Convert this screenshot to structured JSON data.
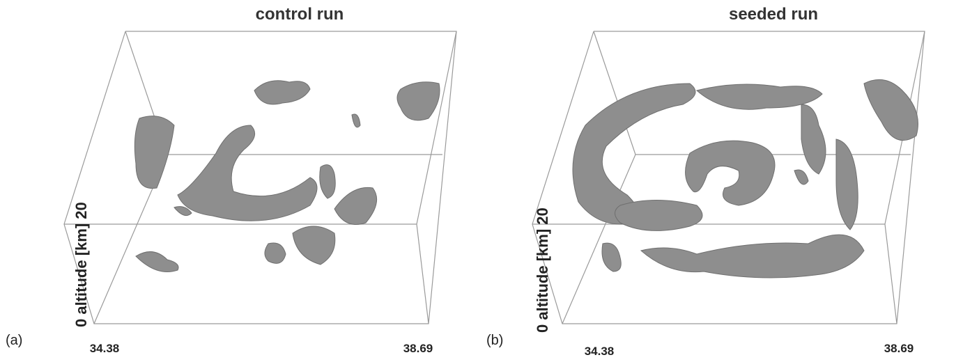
{
  "panels": [
    {
      "label": "(a)",
      "title": "control run",
      "z_label": "altitude [km]",
      "z_ticks": [
        "0",
        "20"
      ],
      "x_ticks": [
        "34.38",
        "38.69"
      ]
    },
    {
      "label": "(b)",
      "title": "seeded run",
      "z_label": "altitude [km]",
      "z_ticks": [
        "0",
        "20"
      ],
      "x_ticks": [
        "34.38",
        "38.69"
      ]
    }
  ]
}
